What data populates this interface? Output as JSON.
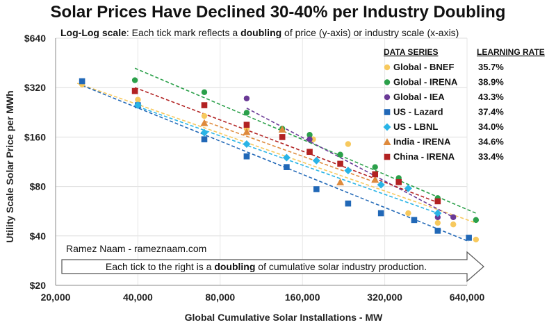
{
  "chart_data": {
    "type": "scatter",
    "title": "Solar Prices Have Declined 30-40% per Industry Doubling",
    "subtitle": {
      "prefix": "Log-Log scale",
      "part1": ": Each tick mark reflects a ",
      "emph": "doubling",
      "part2": " of price (y-axis) or industry scale (x-axis)"
    },
    "xlabel": "Global Cumulative Solar Installations - MW",
    "ylabel": "Utility Scale Solar Price per MWh",
    "x_scale": "log2",
    "y_scale": "log2",
    "xlim": [
      20000,
      640000
    ],
    "ylim": [
      20,
      640
    ],
    "x_ticks": [
      20000,
      40000,
      80000,
      160000,
      320000,
      640000
    ],
    "x_tick_labels": [
      "20,000",
      "40,000",
      "80,000",
      "160,000",
      "320,000",
      "640,000"
    ],
    "y_ticks": [
      20,
      40,
      80,
      160,
      320,
      640
    ],
    "y_tick_labels": [
      "$20",
      "$40",
      "$80",
      "$160",
      "$320",
      "$640"
    ],
    "attribution": "Ramez Naam - rameznaam.com",
    "arrow_note": {
      "part1": "Each tick to the right is a ",
      "emph": "doubling",
      "part2": " of cumulative solar industry production."
    },
    "legend": {
      "header_series": "DATA SERIES",
      "header_rate": "LEARNING RATE",
      "placement": "top-right"
    },
    "series": [
      {
        "name": "Global - BNEF",
        "learning_rate": "35.7%",
        "color": "#F7C95E",
        "marker": "circle",
        "points": [
          [
            25000,
            335
          ],
          [
            40000,
            270
          ],
          [
            70000,
            215
          ],
          [
            100000,
            180
          ],
          [
            135000,
            160
          ],
          [
            175000,
            155
          ],
          [
            235000,
            145
          ],
          [
            390000,
            55
          ],
          [
            500000,
            48
          ],
          [
            570000,
            47
          ],
          [
            690000,
            38
          ]
        ],
        "trend": [
          [
            24000,
            340
          ],
          [
            690000,
            48
          ]
        ]
      },
      {
        "name": "Global - IRENA",
        "learning_rate": "38.9%",
        "color": "#2BA04A",
        "marker": "circle",
        "points": [
          [
            39000,
            355
          ],
          [
            70000,
            300
          ],
          [
            100000,
            225
          ],
          [
            135000,
            180
          ],
          [
            170000,
            165
          ],
          [
            220000,
            125
          ],
          [
            295000,
            105
          ],
          [
            360000,
            90
          ],
          [
            500000,
            68
          ],
          [
            690000,
            50
          ]
        ],
        "trend": [
          [
            39000,
            420
          ],
          [
            690000,
            55
          ]
        ]
      },
      {
        "name": "Global - IEA",
        "learning_rate": "43.3%",
        "color": "#6A3A96",
        "marker": "circle",
        "points": [
          [
            100000,
            275
          ],
          [
            170000,
            155
          ],
          [
            500000,
            52
          ],
          [
            570000,
            52
          ]
        ],
        "trend": [
          [
            100000,
            240
          ],
          [
            570000,
            52
          ]
        ]
      },
      {
        "name": "US - Lazard",
        "learning_rate": "37.4%",
        "color": "#2168B7",
        "marker": "square",
        "points": [
          [
            25000,
            350
          ],
          [
            40000,
            250
          ],
          [
            70000,
            155
          ],
          [
            100000,
            122
          ],
          [
            140000,
            105
          ],
          [
            180000,
            77
          ],
          [
            235000,
            63
          ],
          [
            310000,
            55
          ],
          [
            410000,
            50
          ],
          [
            500000,
            43
          ],
          [
            650000,
            39
          ]
        ],
        "trend": [
          [
            25000,
            330
          ],
          [
            650000,
            37
          ]
        ]
      },
      {
        "name": "US - LBNL",
        "learning_rate": "34.0%",
        "color": "#29B4E6",
        "marker": "diamond",
        "points": [
          [
            40000,
            250
          ],
          [
            70000,
            170
          ],
          [
            100000,
            145
          ],
          [
            140000,
            120
          ],
          [
            180000,
            115
          ],
          [
            235000,
            100
          ],
          [
            310000,
            82
          ],
          [
            390000,
            78
          ],
          [
            500000,
            55
          ]
        ],
        "trend": [
          [
            40000,
            245
          ],
          [
            500000,
            55
          ]
        ]
      },
      {
        "name": "India - IRENA",
        "learning_rate": "34.6%",
        "color": "#DE8A3C",
        "marker": "triangle",
        "points": [
          [
            70000,
            195
          ],
          [
            100000,
            172
          ],
          [
            135000,
            178
          ],
          [
            220000,
            85
          ],
          [
            295000,
            88
          ]
        ],
        "trend": [
          [
            70000,
            200
          ],
          [
            295000,
            85
          ]
        ]
      },
      {
        "name": "China - IRENA",
        "learning_rate": "33.4%",
        "color": "#B22222",
        "marker": "square",
        "points": [
          [
            39000,
            305
          ],
          [
            70000,
            250
          ],
          [
            100000,
            190
          ],
          [
            135000,
            160
          ],
          [
            170000,
            130
          ],
          [
            220000,
            110
          ],
          [
            295000,
            95
          ],
          [
            360000,
            85
          ],
          [
            500000,
            65
          ]
        ],
        "trend": [
          [
            39000,
            320
          ],
          [
            500000,
            64
          ]
        ]
      }
    ]
  }
}
